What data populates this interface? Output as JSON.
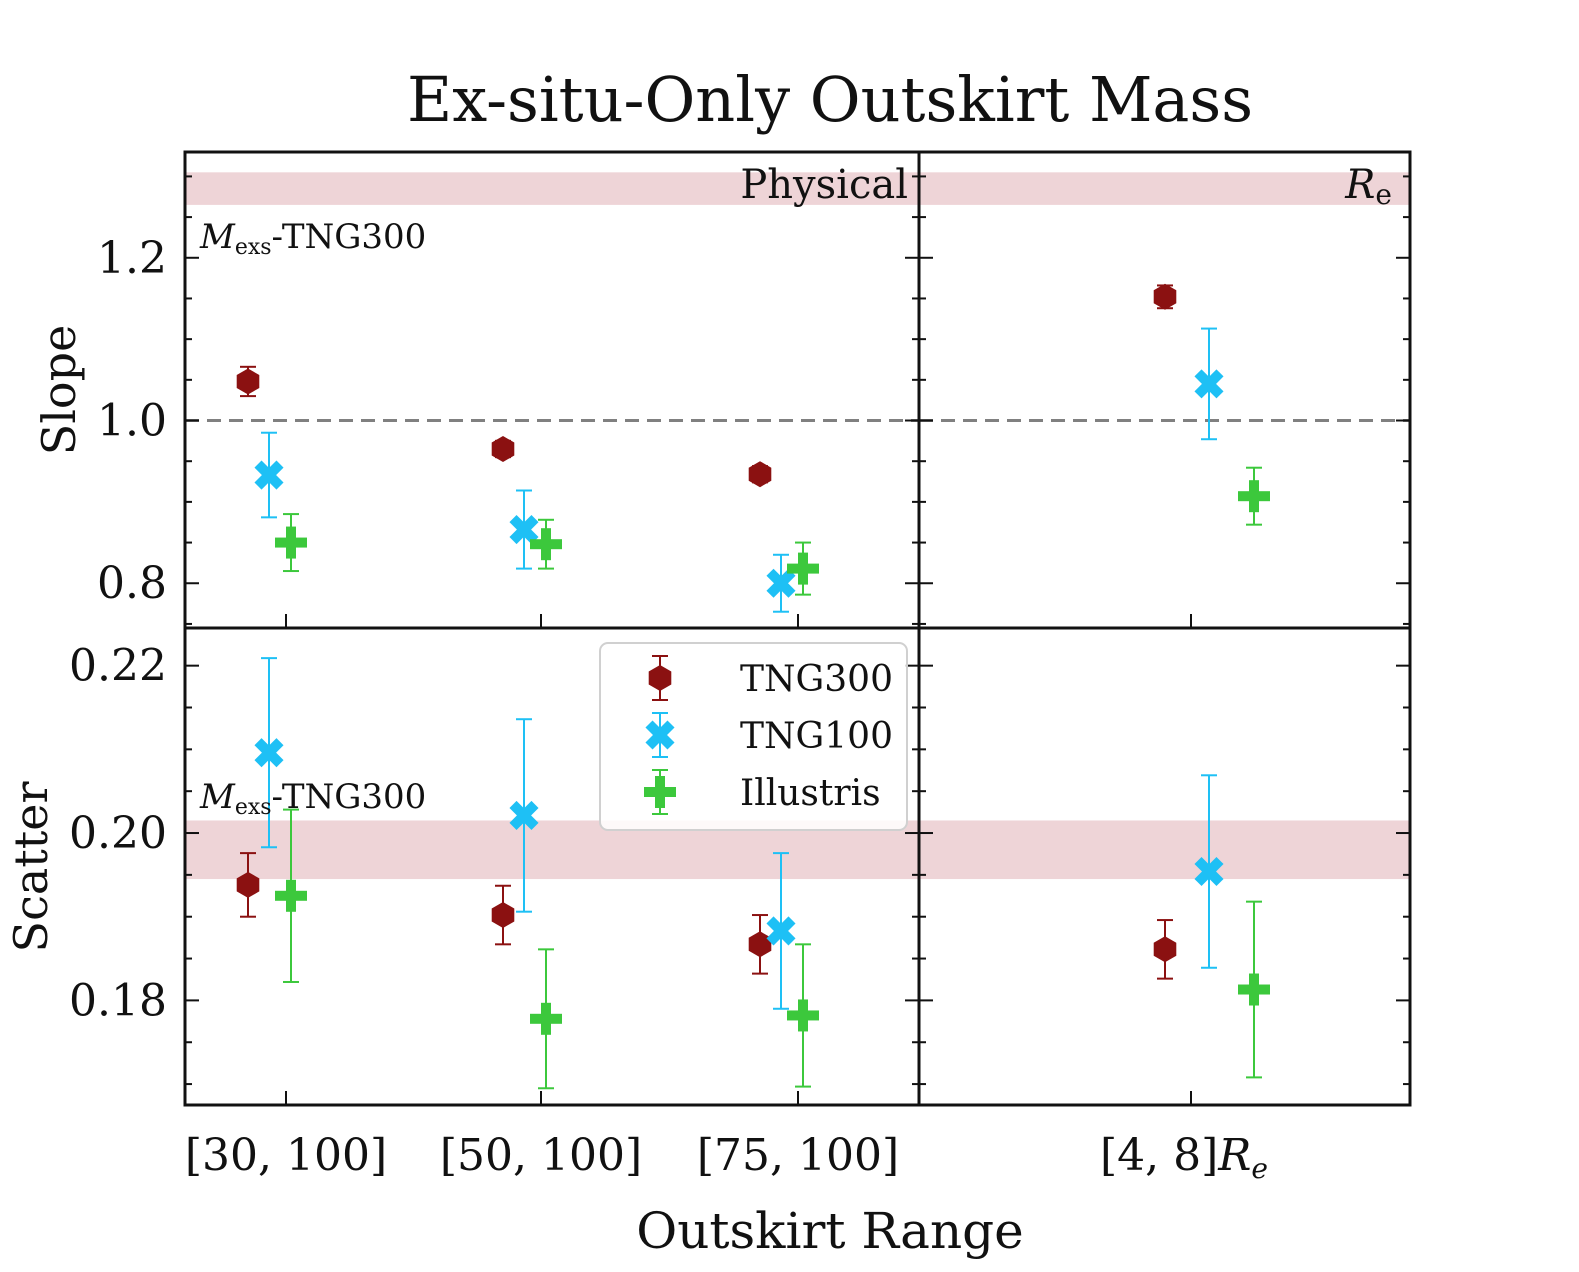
{
  "figure": {
    "title": "Ex-situ-Only Outskirt Mass",
    "xlabel": "Outskirt Range",
    "ylabel_top": "Slope",
    "ylabel_bottom": "Scatter",
    "panel_label_physical": "Physical",
    "panel_label_re_main": "R",
    "panel_label_re_sub": "e",
    "ref_label_main": "M",
    "ref_label_sub": "exs",
    "ref_label_tail": "-TNG300",
    "xtick_re_main": "[4, 8]",
    "xtick_re_tail": "R",
    "xtick_re_sub": "e"
  },
  "colors": {
    "TNG300": "#8b1111",
    "TNG100": "#1ec0f5",
    "Illustris": "#3cc83c",
    "band": "#e8c6c9",
    "dash": "#808080"
  },
  "chart_data": [
    {
      "type": "scatter",
      "panel": "slope-physical",
      "categories": [
        "[30, 100]",
        "[50, 100]",
        "[75, 100]"
      ],
      "ylabel": "Slope",
      "ylim": [
        0.745,
        1.33
      ],
      "yticks": [
        "0.8",
        "1.0",
        "1.2"
      ],
      "ytick_values": [
        0.8,
        1.0,
        1.2
      ],
      "reference_line": 1.0,
      "reference_band": [
        1.265,
        1.305
      ],
      "series": [
        {
          "name": "TNG300",
          "values": [
            1.048,
            0.965,
            0.934
          ],
          "errors": [
            0.018,
            0.01,
            0.01
          ]
        },
        {
          "name": "TNG100",
          "values": [
            0.933,
            0.866,
            0.8
          ],
          "errors": [
            0.052,
            0.048,
            0.035
          ]
        },
        {
          "name": "Illustris",
          "values": [
            0.85,
            0.848,
            0.818
          ],
          "errors": [
            0.035,
            0.03,
            0.032
          ]
        }
      ]
    },
    {
      "type": "scatter",
      "panel": "slope-re",
      "categories": [
        "[4, 8] Re"
      ],
      "ylim": [
        0.745,
        1.33
      ],
      "reference_line": 1.0,
      "reference_band": [
        1.265,
        1.305
      ],
      "series": [
        {
          "name": "TNG300",
          "values": [
            1.152
          ],
          "errors": [
            0.014
          ]
        },
        {
          "name": "TNG100",
          "values": [
            1.045
          ],
          "errors": [
            0.068
          ]
        },
        {
          "name": "Illustris",
          "values": [
            0.907
          ],
          "errors": [
            0.035
          ]
        }
      ]
    },
    {
      "type": "scatter",
      "panel": "scatter-physical",
      "categories": [
        "[30, 100]",
        "[50, 100]",
        "[75, 100]"
      ],
      "ylabel": "Scatter",
      "ylim": [
        0.1675,
        0.2245
      ],
      "yticks": [
        "0.18",
        "0.20",
        "0.22"
      ],
      "ytick_values": [
        0.18,
        0.2,
        0.22
      ],
      "reference_band": [
        0.1945,
        0.2015
      ],
      "series": [
        {
          "name": "TNG300",
          "values": [
            0.1938,
            0.1902,
            0.1867
          ],
          "errors": [
            0.0038,
            0.0035,
            0.0035
          ]
        },
        {
          "name": "TNG100",
          "values": [
            0.2096,
            0.2021,
            0.1883
          ],
          "errors": [
            0.0113,
            0.0115,
            0.0093
          ]
        },
        {
          "name": "Illustris",
          "values": [
            0.1925,
            0.1778,
            0.1782
          ],
          "errors": [
            0.0103,
            0.0083,
            0.0085
          ]
        }
      ]
    },
    {
      "type": "scatter",
      "panel": "scatter-re",
      "categories": [
        "[4, 8] Re"
      ],
      "ylim": [
        0.1675,
        0.2245
      ],
      "reference_band": [
        0.1945,
        0.2015
      ],
      "series": [
        {
          "name": "TNG300",
          "values": [
            0.1861
          ],
          "errors": [
            0.0035
          ]
        },
        {
          "name": "TNG100",
          "values": [
            0.1954
          ],
          "errors": [
            0.0115
          ]
        },
        {
          "name": "Illustris",
          "values": [
            0.1813
          ],
          "errors": [
            0.0105
          ]
        }
      ]
    }
  ],
  "legend": [
    "TNG300",
    "TNG100",
    "Illustris"
  ]
}
